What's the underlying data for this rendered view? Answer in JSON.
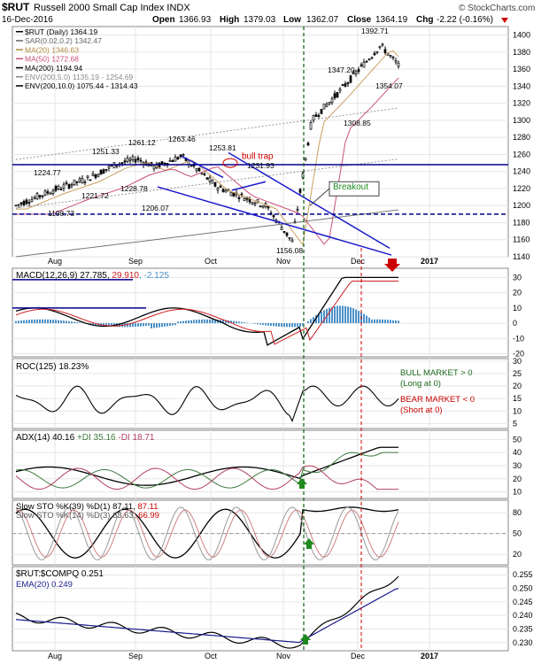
{
  "header": {
    "symbol": "$RUT",
    "name": "Russell 2000 Small Cap Index  INDX",
    "brand": "© StockCharts.com",
    "date": "16-Dec-2016",
    "open_label": "Open",
    "open": "1366.93",
    "high_label": "High",
    "high": "1379.03",
    "low_label": "Low",
    "low": "1362.07",
    "close_label": "Close",
    "close": "1364.19",
    "chg_label": "Chg",
    "chg": "-2.22 (-0.16%)"
  },
  "colors": {
    "price": "#000000",
    "sar": "#555555",
    "ma20": "#c8a060",
    "ma50": "#c8507a",
    "ma200": "#777777",
    "env": "#999999",
    "trend": "#1a1acc",
    "hline": "#00008b",
    "green_marker": "#1e8a1e",
    "red_marker": "#cc0000",
    "grid": "#e6e6e6",
    "macd_hist": "#4a90c8",
    "adx": "#000000",
    "pdi": "#3c7a3c",
    "mdi": "#b04060",
    "ema": "#1a1a8c"
  },
  "legend_price": [
    {
      "text": "$RUT (Daily) 1364.19",
      "color": "#000000"
    },
    {
      "text": "SAR(0.02,0.2) 1342.47",
      "color": "#666666"
    },
    {
      "text": "MA(20) 1346.63",
      "color": "#b08840"
    },
    {
      "text": "MA(50) 1272.68",
      "color": "#c8507a"
    },
    {
      "text": "MA(200) 1194.94",
      "color": "#000000"
    },
    {
      "text": "ENV(200,5.0) 1135.19 - 1254.69",
      "color": "#888888"
    },
    {
      "text": "ENV(200,10.0) 1075.44 - 1314.43",
      "color": "#000000"
    }
  ],
  "annotations": {
    "bull_trap": "bull trap",
    "breakout": "Breakout",
    "price_labels": [
      "1392.71",
      "1347.20",
      "1354.07",
      "1308.85",
      "1263.46",
      "1261.12",
      "1253.81",
      "1251.33",
      "1231.93",
      "1228.78",
      "1224.77",
      "1221.72",
      "1206.07",
      "1198.73",
      "1156.08"
    ]
  },
  "x_labels": [
    "Aug",
    "Sep",
    "Oct",
    "Nov",
    "Dec",
    "2017"
  ],
  "panels": {
    "macd": {
      "title": "MACD(12,26,9)",
      "v1": "27.785",
      "v2": "29.910",
      "v3": "-2.125"
    },
    "roc": {
      "title": "ROC(125)",
      "value": "18.23%",
      "bull1": "BULL MARKET > 0",
      "bull2": "(Long at 0)",
      "bear1": "BEAR MARKET < 0",
      "bear2": "(Short at 0)"
    },
    "adx": {
      "title": "ADX(14)",
      "adx": "40.16",
      "pdi_label": "+DI",
      "pdi": "35.16",
      "mdi_label": "-DI",
      "mdi": "18.71"
    },
    "sto": {
      "line1": "Slow STO %K(39) %D(1)",
      "line1_v1": "87.11",
      "line1_v2": "87.11",
      "line2": "Slow STO %K(14) %D(3)",
      "line2_v1": "63.63",
      "line2_v2": "66.99"
    },
    "ratio": {
      "title": "$RUT:$COMPQ",
      "value": "0.251",
      "ema": "EMA(20) 0.249"
    }
  },
  "chart_data": {
    "type": "line",
    "x": [
      "2016-07-11",
      "2016-07-25",
      "2016-08-08",
      "2016-08-22",
      "2016-09-06",
      "2016-09-19",
      "2016-10-03",
      "2016-10-17",
      "2016-10-31",
      "2016-11-04",
      "2016-11-14",
      "2016-11-28",
      "2016-12-08",
      "2016-12-16"
    ],
    "series": [
      {
        "name": "$RUT (Daily)",
        "values": [
          1200,
          1218,
          1232,
          1248,
          1255,
          1245,
          1258,
          1222,
          1200,
          1158,
          1300,
          1330,
          1388,
          1364.19
        ]
      }
    ],
    "ylim": [
      1140,
      1410
    ],
    "yticks": [
      1140,
      1160,
      1180,
      1200,
      1220,
      1240,
      1260,
      1280,
      1300,
      1320,
      1340,
      1360,
      1380,
      1400
    ],
    "hlines": [
      1248,
      1190
    ],
    "macd_ticks": [
      30,
      20,
      10,
      0,
      -10,
      -20
    ],
    "roc_ticks": [
      30,
      25,
      20,
      15,
      10,
      5
    ],
    "adx_ticks": [
      50,
      40,
      30,
      20,
      10
    ],
    "sto_ticks": [
      80,
      50,
      20
    ],
    "ratio_ticks": [
      0.255,
      0.25,
      0.245,
      0.24,
      0.235,
      0.23
    ]
  }
}
